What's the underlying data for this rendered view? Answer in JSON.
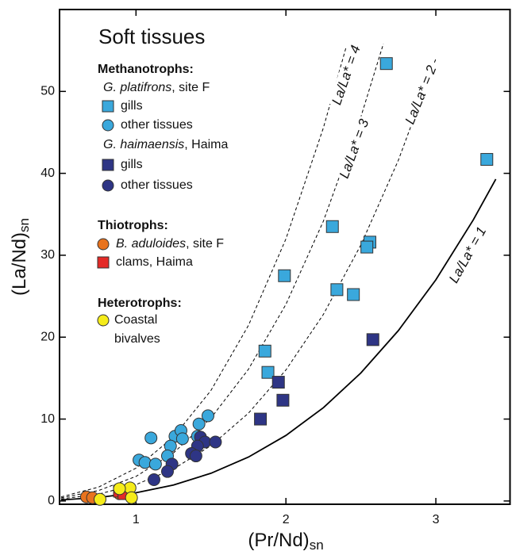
{
  "chart_data": {
    "type": "scatter",
    "title": "Soft tissues",
    "xlabel": "(Pr/Nd)",
    "xlabel_sub": "sn",
    "ylabel": "(La/Nd)",
    "ylabel_sub": "sn",
    "xlim": [
      0.49,
      3.5
    ],
    "ylim": [
      -0.4,
      60
    ],
    "xticks": [
      1,
      2,
      3
    ],
    "yticks": [
      0,
      10,
      20,
      30,
      40,
      50
    ],
    "legend_headings": {
      "methanotrophs": "Methanotrophs:",
      "platifrons": {
        "species": "G. platifrons",
        "site": ", site F"
      },
      "haimaensis": {
        "species": "G. haimaensis",
        "site": ", Haima"
      },
      "thiotrophs": "Thiotrophs:",
      "heterotrophs": "Heterotrophs:"
    },
    "series": [
      {
        "name": "gills",
        "color": "#3aa8dc",
        "marker": "square",
        "x": [
          2.67,
          3.34,
          2.31,
          2.56,
          2.54,
          2.34,
          2.45,
          1.99,
          1.86,
          1.88
        ],
        "values": [
          53.4,
          41.7,
          33.5,
          31.6,
          31.0,
          25.8,
          25.2,
          27.5,
          18.3,
          15.7
        ]
      },
      {
        "name": "other tissues",
        "color": "#3aa8dc",
        "marker": "circle",
        "x": [
          1.48,
          1.42,
          1.1,
          1.41,
          1.26,
          1.3,
          1.31,
          1.23,
          1.21,
          1.02,
          1.06,
          1.13
        ],
        "values": [
          10.4,
          9.4,
          7.7,
          7.9,
          7.9,
          8.6,
          7.6,
          6.7,
          5.5,
          5.0,
          4.7,
          4.5
        ]
      },
      {
        "name": "gills",
        "color": "#2e3585",
        "marker": "square",
        "x": [
          2.58,
          1.95,
          1.98,
          1.83
        ],
        "values": [
          19.7,
          14.5,
          12.3,
          10.0
        ]
      },
      {
        "name": "other tissues",
        "color": "#2e3585",
        "marker": "circle",
        "x": [
          1.43,
          1.46,
          1.53,
          1.41,
          1.37,
          1.4,
          1.24,
          1.21,
          1.12
        ],
        "values": [
          7.8,
          7.2,
          7.2,
          6.7,
          5.8,
          5.5,
          4.5,
          3.6,
          2.6
        ]
      },
      {
        "name_italic": "B. aduloides",
        "name": ", site F",
        "color": "#e8731e",
        "marker": "circle",
        "x": [
          0.67,
          0.71,
          0.89
        ],
        "values": [
          0.5,
          0.4,
          0.9
        ]
      },
      {
        "name": "clams, Haima",
        "color": "#e42a27",
        "marker": "square",
        "x": [
          0.89,
          0.92
        ],
        "values": [
          1.2,
          0.9
        ]
      },
      {
        "name": "Coastal bivalves",
        "color": "#f5ec1a",
        "marker": "circle",
        "x": [
          0.76,
          0.96,
          0.89,
          0.97
        ],
        "values": [
          0.2,
          1.6,
          1.5,
          0.4
        ]
      }
    ],
    "curves": [
      {
        "label": "La/La* = 1",
        "style": "solid",
        "x": [
          0.5,
          0.75,
          1,
          1.25,
          1.5,
          1.75,
          2,
          2.25,
          2.5,
          2.75,
          3,
          3.25,
          3.4
        ],
        "values": [
          0.13,
          0.42,
          1,
          1.95,
          3.38,
          5.36,
          8,
          11.39,
          15.63,
          20.8,
          27,
          34.33,
          39.3
        ]
      },
      {
        "label": "La/La* = 2",
        "style": "dashed",
        "x": [
          0.5,
          0.75,
          1,
          1.25,
          1.5,
          1.75,
          2,
          2.25,
          2.5,
          2.75,
          3
        ],
        "values": [
          0.25,
          0.84,
          2,
          3.91,
          6.75,
          10.72,
          16,
          22.78,
          31.25,
          41.59,
          54
        ]
      },
      {
        "label": "La/La* = 3",
        "style": "dashed",
        "x": [
          0.5,
          0.75,
          1,
          1.25,
          1.5,
          1.75,
          2,
          2.25,
          2.5,
          2.65
        ],
        "values": [
          0.38,
          1.27,
          3,
          5.86,
          10.13,
          16.08,
          24,
          34.17,
          46.88,
          55.83
        ]
      },
      {
        "label": "La/La* = 4",
        "style": "dashed",
        "x": [
          0.5,
          0.75,
          1,
          1.25,
          1.5,
          1.75,
          2,
          2.25,
          2.4
        ],
        "values": [
          0.5,
          1.69,
          4,
          7.81,
          13.5,
          21.44,
          32,
          45.56,
          55.3
        ]
      }
    ]
  }
}
